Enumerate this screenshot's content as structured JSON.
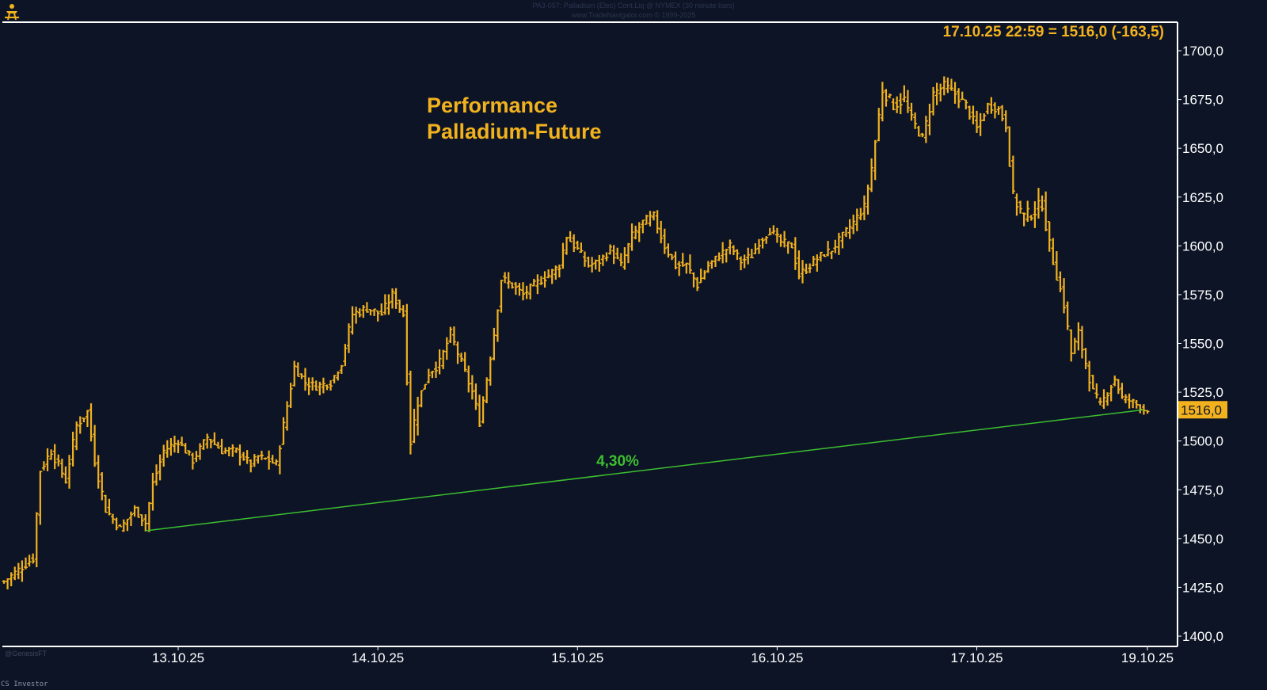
{
  "header": {
    "line1": "PA3-057:  Palladium (Elec) Cont.Liq @ NYMEX  (30 minute bars)",
    "line2": "www.TradeNavigator.com © 1999-2025"
  },
  "corner_logo_icon": "figure-emblem-icon",
  "source_note": "@GenesisFT",
  "bottom_note": "CS  Investor",
  "colors": {
    "background": "#0d1426",
    "bars": "#f2b21e",
    "text": "#f2b21e",
    "axis_text": "#ffffff",
    "trendline": "#3cbf2f",
    "trend_label": "#3cbf2f",
    "price_tag_bg": "#f2b21e",
    "price_tag_text": "#0d1426"
  },
  "chart_data": {
    "type": "ohlc",
    "title": "Performance",
    "subtitle": "Palladium-Future",
    "last_value_label": "17.10.25 22:59 = 1516,0 (-163,5)",
    "current_price_tag": "1516,0",
    "yaxis": {
      "position": "right",
      "ylim": [
        1397,
        1715
      ],
      "ticks": [
        1400,
        1425,
        1450,
        1475,
        1500,
        1525,
        1550,
        1575,
        1600,
        1625,
        1650,
        1675,
        1700
      ],
      "tick_labels": [
        "1400,0",
        "1425,0",
        "1450,0",
        "1475,0",
        "1500,0",
        "1525,0",
        "1550,0",
        "1575,0",
        "1600,0",
        "1625,0",
        "1650,0",
        "1675,0",
        "1700,0"
      ]
    },
    "xaxis": {
      "ticks": [
        {
          "label": "13.10.25",
          "bar_index": 48
        },
        {
          "label": "14.10.25",
          "bar_index": 103
        },
        {
          "label": "15.10.25",
          "bar_index": 158
        },
        {
          "label": "16.10.25",
          "bar_index": 213
        },
        {
          "label": "17.10.25",
          "bar_index": 268
        },
        {
          "label": "19.10.25",
          "bar_index": 315
        }
      ],
      "n_bars": 316
    },
    "trend_line": {
      "label": "4,30%",
      "from": {
        "bar_index": 39,
        "value": 1454
      },
      "to": {
        "bar_index": 314,
        "value": 1516
      }
    },
    "anchors": [
      [
        0,
        1428,
        5
      ],
      [
        8,
        1440,
        6
      ],
      [
        10,
        1485,
        6
      ],
      [
        13,
        1495,
        6
      ],
      [
        17,
        1480,
        6
      ],
      [
        20,
        1508,
        6
      ],
      [
        23,
        1515,
        6
      ],
      [
        25,
        1490,
        6
      ],
      [
        28,
        1465,
        6
      ],
      [
        32,
        1455,
        5
      ],
      [
        36,
        1465,
        5
      ],
      [
        39,
        1458,
        5
      ],
      [
        41,
        1478,
        6
      ],
      [
        44,
        1495,
        5
      ],
      [
        48,
        1500,
        5
      ],
      [
        52,
        1490,
        5
      ],
      [
        56,
        1502,
        5
      ],
      [
        60,
        1495,
        5
      ],
      [
        64,
        1495,
        5
      ],
      [
        68,
        1488,
        5
      ],
      [
        70,
        1492,
        5
      ],
      [
        73,
        1490,
        5
      ],
      [
        75,
        1488,
        5
      ],
      [
        78,
        1518,
        6
      ],
      [
        80,
        1538,
        6
      ],
      [
        83,
        1530,
        5
      ],
      [
        86,
        1528,
        5
      ],
      [
        90,
        1530,
        5
      ],
      [
        93,
        1540,
        5
      ],
      [
        96,
        1565,
        6
      ],
      [
        100,
        1568,
        6
      ],
      [
        104,
        1565,
        6
      ],
      [
        107,
        1575,
        5
      ],
      [
        110,
        1565,
        5
      ],
      [
        112,
        1500,
        8
      ],
      [
        114,
        1520,
        7
      ],
      [
        117,
        1535,
        6
      ],
      [
        120,
        1540,
        6
      ],
      [
        123,
        1555,
        6
      ],
      [
        126,
        1540,
        6
      ],
      [
        129,
        1525,
        6
      ],
      [
        131,
        1510,
        6
      ],
      [
        133,
        1532,
        6
      ],
      [
        135,
        1555,
        6
      ],
      [
        137,
        1583,
        6
      ],
      [
        140,
        1580,
        6
      ],
      [
        143,
        1575,
        5
      ],
      [
        146,
        1580,
        5
      ],
      [
        150,
        1585,
        5
      ],
      [
        153,
        1590,
        5
      ],
      [
        155,
        1605,
        6
      ],
      [
        158,
        1598,
        6
      ],
      [
        161,
        1590,
        5
      ],
      [
        164,
        1592,
        5
      ],
      [
        167,
        1598,
        5
      ],
      [
        170,
        1590,
        5
      ],
      [
        173,
        1605,
        6
      ],
      [
        176,
        1612,
        6
      ],
      [
        179,
        1615,
        6
      ],
      [
        182,
        1600,
        6
      ],
      [
        185,
        1590,
        6
      ],
      [
        188,
        1590,
        6
      ],
      [
        191,
        1580,
        6
      ],
      [
        194,
        1590,
        5
      ],
      [
        197,
        1595,
        5
      ],
      [
        200,
        1600,
        5
      ],
      [
        203,
        1592,
        5
      ],
      [
        206,
        1595,
        5
      ],
      [
        208,
        1602,
        5
      ],
      [
        211,
        1608,
        5
      ],
      [
        214,
        1602,
        5
      ],
      [
        217,
        1600,
        5
      ],
      [
        219,
        1585,
        6
      ],
      [
        222,
        1590,
        5
      ],
      [
        225,
        1595,
        5
      ],
      [
        228,
        1598,
        5
      ],
      [
        231,
        1605,
        5
      ],
      [
        234,
        1612,
        5
      ],
      [
        237,
        1620,
        5
      ],
      [
        239,
        1640,
        6
      ],
      [
        242,
        1680,
        7
      ],
      [
        245,
        1672,
        7
      ],
      [
        248,
        1675,
        7
      ],
      [
        250,
        1665,
        6
      ],
      [
        253,
        1655,
        6
      ],
      [
        256,
        1678,
        6
      ],
      [
        259,
        1682,
        6
      ],
      [
        262,
        1678,
        6
      ],
      [
        265,
        1672,
        6
      ],
      [
        268,
        1660,
        6
      ],
      [
        271,
        1672,
        5
      ],
      [
        274,
        1670,
        5
      ],
      [
        276,
        1662,
        6
      ],
      [
        278,
        1625,
        8
      ],
      [
        281,
        1615,
        8
      ],
      [
        284,
        1618,
        8
      ],
      [
        286,
        1622,
        8
      ],
      [
        288,
        1600,
        8
      ],
      [
        290,
        1585,
        7
      ],
      [
        292,
        1570,
        7
      ],
      [
        294,
        1545,
        7
      ],
      [
        296,
        1555,
        7
      ],
      [
        298,
        1540,
        7
      ],
      [
        300,
        1525,
        6
      ],
      [
        302,
        1518,
        6
      ],
      [
        304,
        1525,
        5
      ],
      [
        306,
        1532,
        5
      ],
      [
        308,
        1522,
        5
      ],
      [
        311,
        1520,
        4
      ],
      [
        314,
        1516,
        3
      ]
    ]
  }
}
